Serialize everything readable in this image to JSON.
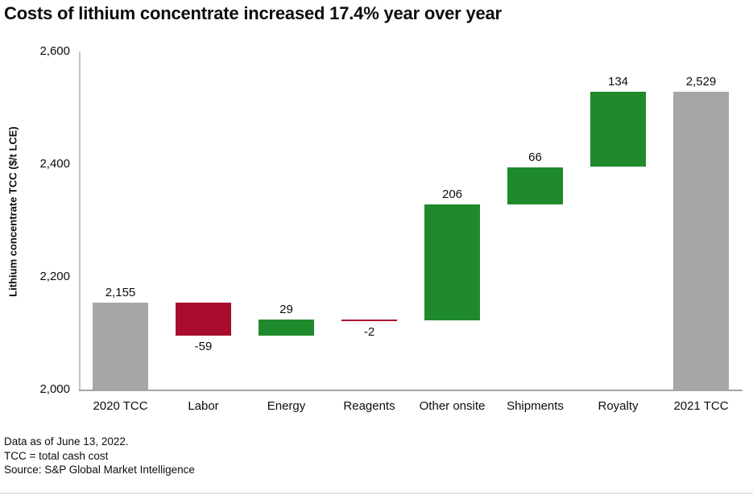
{
  "title": "Costs of lithium concentrate increased 17.4% year over year",
  "chart_data": {
    "type": "bar",
    "subtype": "waterfall",
    "title": "Costs of lithium concentrate increased 17.4% year over year",
    "categories": [
      "2020 TCC",
      "Labor",
      "Energy",
      "Reagents",
      "Other onsite",
      "Shipments",
      "Royalty",
      "2021 TCC"
    ],
    "bars": [
      {
        "category": "2020 TCC",
        "value": 2155,
        "display": "2,155",
        "kind": "total"
      },
      {
        "category": "Labor",
        "value": -59,
        "display": "-59",
        "kind": "delta"
      },
      {
        "category": "Energy",
        "value": 29,
        "display": "29",
        "kind": "delta"
      },
      {
        "category": "Reagents",
        "value": -2,
        "display": "-2",
        "kind": "delta"
      },
      {
        "category": "Other onsite",
        "value": 206,
        "display": "206",
        "kind": "delta"
      },
      {
        "category": "Shipments",
        "value": 66,
        "display": "66",
        "kind": "delta"
      },
      {
        "category": "Royalty",
        "value": 134,
        "display": "134",
        "kind": "delta"
      },
      {
        "category": "2021 TCC",
        "value": 2529,
        "display": "2,529",
        "kind": "total"
      }
    ],
    "xlabel": "",
    "ylabel": "Lithium concentrate TCC ($/t LCE)",
    "ylim": [
      2000,
      2600
    ],
    "yticks": [
      2000,
      2200,
      2400,
      2600
    ],
    "ytick_labels": [
      "2,000",
      "2,200",
      "2,400",
      "2,600"
    ],
    "grid": false,
    "legend": "none",
    "colors": {
      "total": "#a6a6a6",
      "increase": "#1f8a2b",
      "decrease": "#a80c2f"
    }
  },
  "footer": {
    "line1": "Data as of June 13, 2022.",
    "line2": "TCC = total cash cost",
    "line3": "Source: S&P Global Market Intelligence"
  }
}
